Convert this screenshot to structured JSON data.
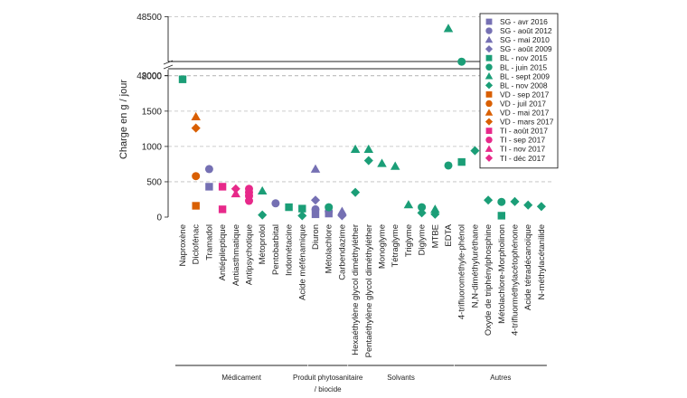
{
  "chart_data": {
    "type": "scatter",
    "title": "",
    "xlabel": "",
    "ylabel": "Charge en g / jour",
    "y_axis": {
      "lower_range": [
        0,
        2100
      ],
      "lower_ticks": [
        0,
        500,
        1000,
        1500,
        2000
      ],
      "upper_range": [
        47950,
        48550
      ],
      "upper_ticks": [
        48000,
        48500
      ],
      "broken": true
    },
    "categories": [
      "Naproxène",
      "Diclofénac",
      "Tramadol",
      "Antiépileptique",
      "Antiasthmatique",
      "Antipsychotique",
      "Métoprolol",
      "Pentobarbital",
      "Indométacine",
      "Acide méfénamique",
      "Diuron",
      "Métolachlore",
      "Carbendazime",
      "Hexaéthylène glycol diméthyléther",
      "Pentaéthylène glycol diméthyléther",
      "Monoglyme",
      "Tétraglyme",
      "Triglyme",
      "Diglyme",
      "MTBE",
      "EDTA",
      "4-trifluorométhyle-phénol",
      "N,N-diméthyluréthane",
      "Oxyde de triphénylphosphine",
      "Métolachlore-Morpholinon",
      "4-trifluorméthylacétophénone",
      "Acide tétradécanoïque",
      "N-méthylacétanilide"
    ],
    "groups": [
      {
        "label": "Médicament",
        "from": 0,
        "to": 9
      },
      {
        "label": "Produit phytosanitaire / biocide",
        "from": 10,
        "to": 12
      },
      {
        "label": "Solvants",
        "from": 13,
        "to": 20
      },
      {
        "label": "Autres",
        "from": 21,
        "to": 27
      }
    ],
    "series": [
      {
        "name": "SG - avr 2016",
        "site": "SG",
        "color": "#7570b3",
        "marker": "square",
        "points": [
          [
            2,
            430
          ],
          [
            10,
            40
          ],
          [
            11,
            50
          ]
        ]
      },
      {
        "name": "SG - août 2012",
        "site": "SG",
        "color": "#7570b3",
        "marker": "circle",
        "points": [
          [
            2,
            680
          ],
          [
            7,
            195
          ],
          [
            10,
            110
          ],
          [
            11,
            80
          ]
        ]
      },
      {
        "name": "SG - mai 2010",
        "site": "SG",
        "color": "#7570b3",
        "marker": "triangle",
        "points": [
          [
            10,
            680
          ],
          [
            12,
            80
          ]
        ]
      },
      {
        "name": "SG - août 2009",
        "site": "SG",
        "color": "#7570b3",
        "marker": "diamond",
        "points": [
          [
            10,
            240
          ],
          [
            12,
            20
          ]
        ]
      },
      {
        "name": "BL - nov 2015",
        "site": "BL",
        "color": "#1b9e77",
        "marker": "square",
        "points": [
          [
            0,
            1950
          ],
          [
            8,
            140
          ],
          [
            9,
            120
          ],
          [
            21,
            780
          ],
          [
            24,
            20
          ]
        ]
      },
      {
        "name": "BL - juin 2015",
        "site": "BL",
        "color": "#1b9e77",
        "marker": "circle",
        "points": [
          [
            11,
            140
          ],
          [
            18,
            140
          ],
          [
            20,
            730
          ],
          [
            21,
            2200
          ],
          [
            24,
            215
          ]
        ]
      },
      {
        "name": "BL - sept 2009",
        "site": "BL",
        "color": "#1b9e77",
        "marker": "triangle",
        "points": [
          [
            6,
            370
          ],
          [
            13,
            960
          ],
          [
            14,
            960
          ],
          [
            15,
            760
          ],
          [
            16,
            720
          ],
          [
            17,
            175
          ],
          [
            19,
            110
          ],
          [
            20,
            48400
          ]
        ]
      },
      {
        "name": "BL - nov 2008",
        "site": "BL",
        "color": "#1b9e77",
        "marker": "diamond",
        "points": [
          [
            6,
            30
          ],
          [
            9,
            20
          ],
          [
            13,
            350
          ],
          [
            14,
            800
          ],
          [
            18,
            60
          ],
          [
            19,
            40
          ],
          [
            22,
            940
          ],
          [
            23,
            240
          ],
          [
            25,
            220
          ],
          [
            26,
            170
          ],
          [
            27,
            150
          ]
        ]
      },
      {
        "name": "VD - sep 2017",
        "site": "VD",
        "color": "#d95f02",
        "marker": "square",
        "points": [
          [
            1,
            160
          ]
        ]
      },
      {
        "name": "VD - juil 2017",
        "site": "VD",
        "color": "#d95f02",
        "marker": "circle",
        "points": [
          [
            1,
            580
          ]
        ]
      },
      {
        "name": "VD - mai 2017",
        "site": "VD",
        "color": "#d95f02",
        "marker": "triangle",
        "points": [
          [
            1,
            1420
          ]
        ]
      },
      {
        "name": "VD - mars 2017",
        "site": "VD",
        "color": "#d95f02",
        "marker": "diamond",
        "points": [
          [
            1,
            1260
          ]
        ]
      },
      {
        "name": "TI - août 2017",
        "site": "TI",
        "color": "#e7298a",
        "marker": "square",
        "points": [
          [
            3,
            430
          ],
          [
            3,
            110
          ]
        ]
      },
      {
        "name": "TI - sep 2017",
        "site": "TI",
        "color": "#e7298a",
        "marker": "circle",
        "points": [
          [
            5,
            400
          ],
          [
            5,
            350
          ],
          [
            5,
            300
          ],
          [
            5,
            230
          ]
        ]
      },
      {
        "name": "TI - nov 2017",
        "site": "TI",
        "color": "#e7298a",
        "marker": "triangle",
        "points": [
          [
            4,
            330
          ]
        ]
      },
      {
        "name": "TI - déc 2017",
        "site": "TI",
        "color": "#e7298a",
        "marker": "diamond",
        "points": [
          [
            4,
            400
          ]
        ]
      }
    ]
  }
}
